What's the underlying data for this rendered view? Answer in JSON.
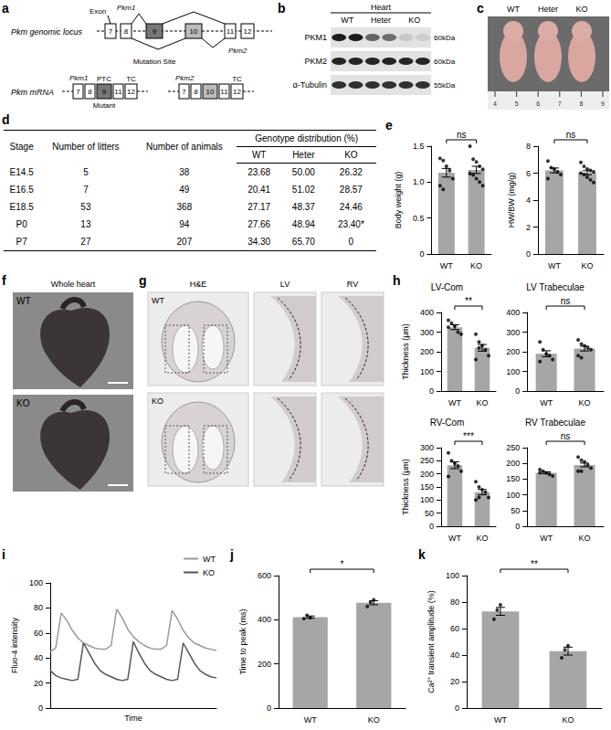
{
  "panels": {
    "a": {
      "letter": "a",
      "locus_label": "Pkm genomic locus",
      "exon_label": "Exon",
      "exons": [
        "7",
        "8",
        "9",
        "10",
        "11",
        "12"
      ],
      "isoform1": "Pkm1",
      "isoform2": "Pkm2",
      "mutation": "Mutation Site",
      "mrna_label": "Pkm mRNA",
      "pkm1_exons": [
        "7",
        "8",
        "9",
        "11",
        "12"
      ],
      "pkm2_exons": [
        "7",
        "8",
        "10",
        "11",
        "12"
      ],
      "ptc": "PTC",
      "tc": "TC",
      "mutant": "Mutant"
    },
    "b": {
      "letter": "b",
      "tissue": "Heart",
      "lanes": [
        "WT",
        "Heter",
        "KO"
      ],
      "rows": [
        {
          "label": "PKM1",
          "size": "60kDa"
        },
        {
          "label": "PKM2",
          "size": "60kDa"
        },
        {
          "label": "α-Tubulin",
          "size": "55kDa"
        }
      ]
    },
    "c": {
      "letter": "c",
      "labels": [
        "WT",
        "Heter",
        "KO"
      ],
      "ruler": [
        "4",
        "5",
        "6",
        "7",
        "8",
        "9"
      ]
    },
    "d": {
      "letter": "d",
      "header": [
        "Stage",
        "Number of litters",
        "Number of animals",
        "Genotype distribution (%)"
      ],
      "subheader": [
        "WT",
        "Heter",
        "KO"
      ],
      "rows": [
        [
          "E14.5",
          "5",
          "38",
          "23.68",
          "50.00",
          "26.32"
        ],
        [
          "E16.5",
          "7",
          "49",
          "20.41",
          "51.02",
          "28.57"
        ],
        [
          "E18.5",
          "53",
          "368",
          "27.17",
          "48.37",
          "24.46"
        ],
        [
          "P0",
          "13",
          "94",
          "27.66",
          "48.94",
          "23.40*"
        ],
        [
          "P7",
          "27",
          "207",
          "34.30",
          "65.70",
          "0"
        ]
      ]
    },
    "f": {
      "letter": "f",
      "title": "Whole heart",
      "labels": [
        "WT",
        "KO"
      ]
    },
    "g": {
      "letter": "g",
      "titles": [
        "H&E",
        "LV",
        "RV"
      ],
      "labels": [
        "WT",
        "KO"
      ]
    }
  },
  "chart_data": [
    {
      "panel": "e",
      "type": "bar",
      "ylabel": "Body weight (g)",
      "categories": [
        "WT",
        "KO"
      ],
      "values": [
        1.13,
        1.17
      ],
      "errors": [
        0.06,
        0.05
      ],
      "points": [
        [
          1.33,
          1.3,
          1.22,
          1.16,
          1.05,
          0.95,
          0.9
        ],
        [
          1.5,
          1.32,
          1.28,
          1.22,
          1.18,
          1.12,
          1.1,
          1.05,
          1.0,
          0.95
        ]
      ],
      "color": "#a6a6a6",
      "ylim": [
        0,
        1.5
      ],
      "yticks": [
        0,
        0.5,
        {
          "value": 1,
          "label": "1.0"
        },
        1.5
      ],
      "annotation": "ns",
      "grid": false
    },
    {
      "type": "bar",
      "ylabel": "HW/BW (mg/g)",
      "categories": [
        "WT",
        "KO"
      ],
      "values": [
        6.2,
        6.03
      ],
      "errors": [
        0.18,
        0.15
      ],
      "points": [
        [
          6.9,
          6.4,
          6.3,
          6.1,
          5.9,
          5.6
        ],
        [
          6.8,
          6.5,
          6.3,
          6.2,
          6.1,
          6.0,
          5.9,
          5.7,
          5.5,
          5.3
        ]
      ],
      "color": "#a6a6a6",
      "ylim": [
        0,
        8
      ],
      "yticks": [
        0,
        2,
        4,
        6,
        8
      ],
      "annotation": "ns",
      "grid": false
    },
    {
      "panel": "h",
      "type": "bar",
      "title": "LV-Com",
      "ylabel": "Thickness (μm)",
      "categories": [
        "WT",
        "KO"
      ],
      "values": [
        325,
        220
      ],
      "errors": [
        12,
        17
      ],
      "points": [
        [
          360,
          345,
          330,
          300,
          290,
          325
        ],
        [
          290,
          250,
          230,
          210,
          180,
          160,
          220
        ]
      ],
      "color": "#a6a6a6",
      "ylim": [
        0,
        400
      ],
      "yticks": [
        0,
        100,
        200,
        300,
        400
      ],
      "annotation": "**",
      "grid": false
    },
    {
      "type": "bar",
      "title": "LV Trabeculae",
      "categories": [
        "WT",
        "KO"
      ],
      "values": [
        190,
        216
      ],
      "errors": [
        15,
        12
      ],
      "points": [
        [
          250,
          210,
          190,
          180,
          160,
          150
        ],
        [
          260,
          240,
          230,
          220,
          210,
          180,
          170
        ]
      ],
      "color": "#a6a6a6",
      "ylim": [
        0,
        400
      ],
      "yticks": [
        0,
        100,
        200,
        300,
        400
      ],
      "annotation": "ns",
      "grid": false
    },
    {
      "type": "bar",
      "title": "RV-Com",
      "ylabel": "Thickness (μm)",
      "categories": [
        "WT",
        "KO"
      ],
      "values": [
        233,
        130
      ],
      "errors": [
        13,
        10
      ],
      "points": [
        [
          280,
          250,
          240,
          230,
          210,
          190
        ],
        [
          170,
          150,
          140,
          130,
          110,
          100,
          110
        ]
      ],
      "color": "#a6a6a6",
      "ylim": [
        0,
        300
      ],
      "yticks": [
        0,
        50,
        100,
        150,
        200,
        250,
        300
      ],
      "annotation": "***",
      "grid": false
    },
    {
      "type": "bar",
      "title": "RV Trabeculae",
      "categories": [
        "WT",
        "KO"
      ],
      "values": [
        170,
        195
      ],
      "errors": [
        3,
        6
      ],
      "points": [
        [
          180,
          175,
          170,
          165,
          160,
          170
        ],
        [
          220,
          210,
          205,
          195,
          185,
          175,
          175
        ]
      ],
      "color": "#a6a6a6",
      "ylim": [
        0,
        250
      ],
      "yticks": [
        0,
        50,
        100,
        150,
        200,
        250
      ],
      "annotation": "ns",
      "grid": false
    },
    {
      "panel": "i",
      "type": "line",
      "ylabel": "Fluo-4 intensity",
      "xlabel": "Time",
      "x": [
        0,
        1,
        2,
        3,
        4,
        5,
        6,
        7,
        8,
        9,
        10,
        11,
        12,
        13,
        14,
        15,
        16,
        17,
        18,
        19,
        20,
        21,
        22,
        23,
        24,
        25,
        26,
        27,
        28,
        29,
        30
      ],
      "series": [
        {
          "name": "WT",
          "color": "#9a9a9a",
          "values": [
            45,
            48,
            76,
            70,
            62,
            56,
            52,
            50,
            48,
            47,
            47,
            50,
            79,
            72,
            63,
            57,
            53,
            50,
            48,
            47,
            47,
            50,
            78,
            71,
            62,
            56,
            52,
            50,
            48,
            47,
            46
          ]
        },
        {
          "name": "KO",
          "color": "#555555",
          "values": [
            30,
            26,
            24,
            23,
            22,
            23,
            52,
            44,
            36,
            30,
            27,
            25,
            23,
            22,
            23,
            53,
            44,
            36,
            30,
            27,
            25,
            23,
            22,
            23,
            52,
            44,
            36,
            30,
            27,
            25,
            24
          ]
        }
      ],
      "xlim": [
        0,
        30
      ],
      "ylim": [
        0,
        100
      ],
      "yticks": [
        0,
        20,
        40,
        60,
        80,
        100
      ],
      "tick_labels": "y",
      "legend": "top-right",
      "grid": false
    },
    {
      "panel": "j",
      "type": "bar",
      "ylabel": "Time to peak (ms)",
      "categories": [
        "WT",
        "KO"
      ],
      "values": [
        412,
        477
      ],
      "errors": [
        5,
        9
      ],
      "points": [
        [
          405,
          420,
          410
        ],
        [
          460,
          480,
          490
        ]
      ],
      "color": "#a6a6a6",
      "ylim": [
        0,
        600
      ],
      "yticks": [
        0,
        200,
        400,
        600
      ],
      "annotation": "*",
      "grid": false
    },
    {
      "panel": "k",
      "type": "bar",
      "ylabel": "Ca²⁺ transient amplitude (%)",
      "categories": [
        "WT",
        "KO"
      ],
      "values": [
        73,
        43
      ],
      "errors": [
        3,
        3
      ],
      "points": [
        [
          67,
          74,
          78
        ],
        [
          38,
          44,
          47
        ]
      ],
      "color": "#a6a6a6",
      "ylim": [
        0,
        100
      ],
      "yticks": [
        0,
        20,
        40,
        60,
        80,
        100
      ],
      "annotation": "**",
      "grid": false
    }
  ]
}
